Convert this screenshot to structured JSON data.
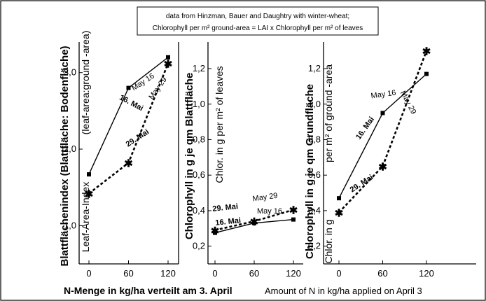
{
  "note": {
    "line1": "data from Hinzman, Bauer and Daughtry  with winter-wheat;",
    "line2": "Chlorophyll per m² ground-area = LAI x Chlorophyll per m² of leaves"
  },
  "x_titles": {
    "de": "N-Menge in kg/ha verteilt am 3. April",
    "en": "Amount of N in kg/ha applied on April 3"
  },
  "chart_data": [
    {
      "type": "line",
      "ylabel_de": "Blattflächenindex (Blattfläche: Bodenfläche)",
      "ylabel_en_top": "(leaf-area:ground -area)",
      "ylabel_en_bottom": "Leaf-Area-Index",
      "x": [
        0,
        60,
        120
      ],
      "x_ticks": [
        "0",
        "60",
        "120"
      ],
      "y_ticks": [
        "1,0",
        "2,0",
        "3,0"
      ],
      "ylim": [
        0.5,
        3.4
      ],
      "series": [
        {
          "name": "16. Mai",
          "alt_name": "May 16",
          "values": [
            1.67,
            2.8,
            3.2
          ]
        },
        {
          "name": "29. Mai",
          "alt_name": "May 29",
          "values": [
            1.42,
            1.82,
            3.12
          ]
        }
      ]
    },
    {
      "type": "line",
      "ylabel_de": "Chlorophyll in g  je qm  Blattfläche",
      "ylabel_en": "Chlor. in g per m² of leaves",
      "x": [
        0,
        60,
        120
      ],
      "x_ticks": [
        "0",
        "60",
        "120"
      ],
      "y_ticks": [
        "0,2",
        "0,4",
        "0,6",
        "0,8",
        "1,0",
        "1,2"
      ],
      "ylim": [
        0.1,
        1.35
      ],
      "series": [
        {
          "name": "16. Mai",
          "alt_name": "May 16",
          "values": [
            0.275,
            0.33,
            0.35
          ]
        },
        {
          "name": "29. Mai",
          "alt_name": "May 29",
          "values": [
            0.29,
            0.34,
            0.405
          ]
        }
      ]
    },
    {
      "type": "line",
      "ylabel_de": "Chlorophyll in g  je qm  Grundfläche",
      "ylabel_en_top": "per m² of ground -area",
      "ylabel_en_bottom": "Chlor. in g",
      "x": [
        0,
        60,
        120
      ],
      "x_ticks": [
        "0",
        "60",
        "120"
      ],
      "y_ticks": [
        "0,2",
        "0,4",
        "0,6",
        "0,8",
        "1,0",
        "1,2"
      ],
      "ylim": [
        0.1,
        1.35
      ],
      "series": [
        {
          "name": "16. Mai",
          "alt_name": "May 16",
          "values": [
            0.47,
            0.95,
            1.17
          ]
        },
        {
          "name": "29. Mai",
          "alt_name": "May 29",
          "values": [
            0.39,
            0.65,
            1.3
          ]
        }
      ]
    }
  ]
}
